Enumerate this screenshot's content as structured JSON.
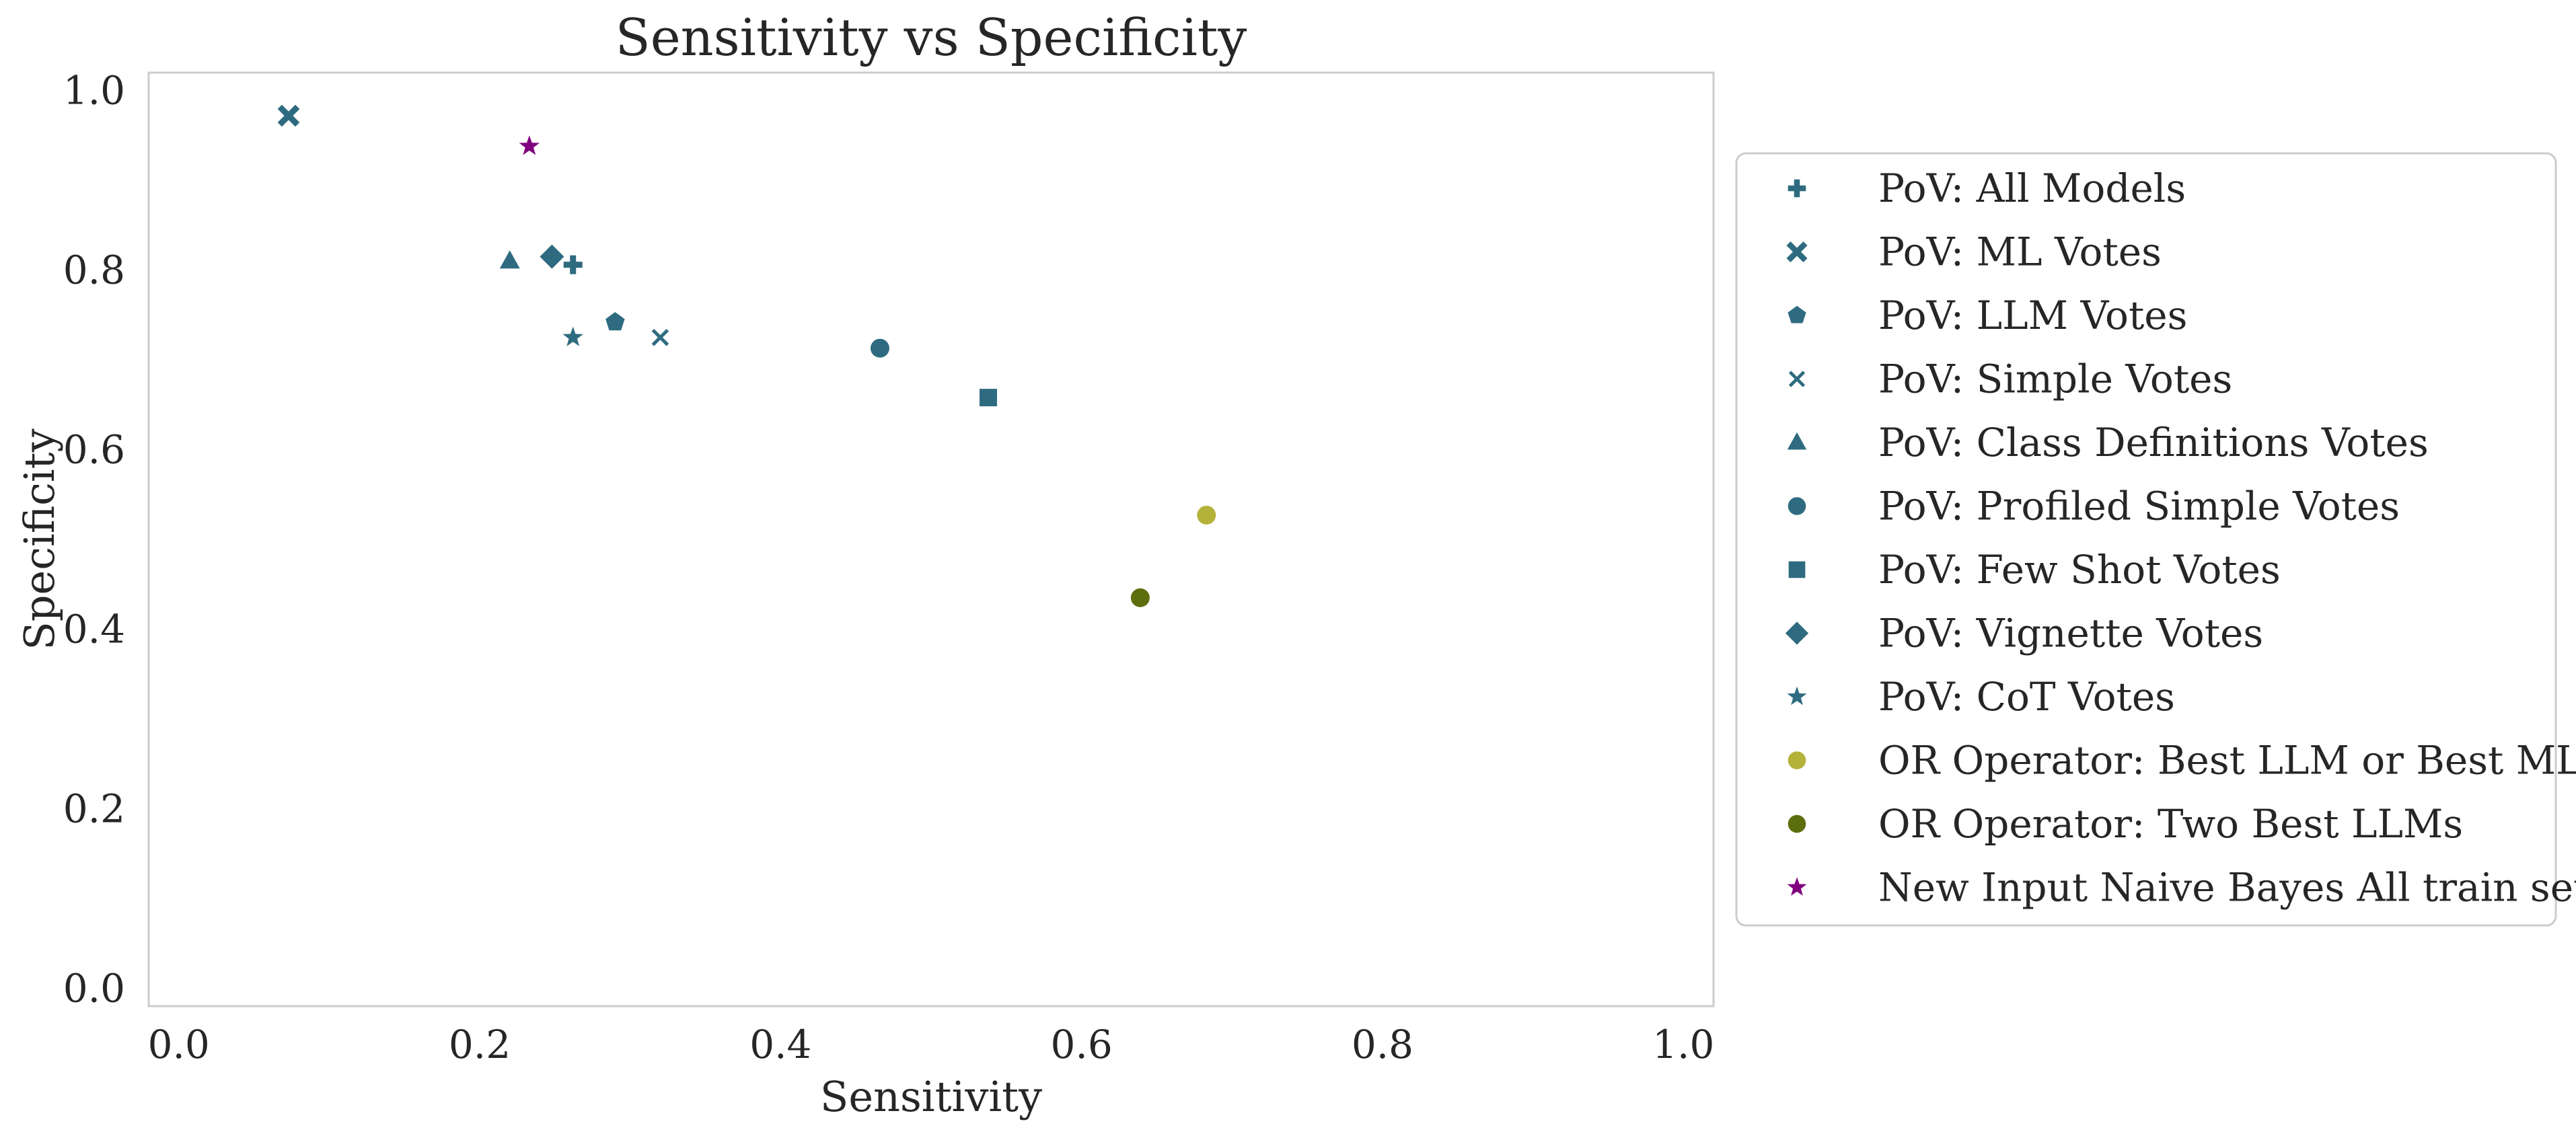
{
  "chart_data": {
    "type": "scatter",
    "title": "Sensitivity vs Specificity",
    "xlabel": "Sensitivity",
    "ylabel": "Specificity",
    "xlim": [
      -0.02,
      1.02
    ],
    "ylim": [
      -0.02,
      1.02
    ],
    "xticks": [
      0.0,
      0.2,
      0.4,
      0.6,
      0.8,
      1.0
    ],
    "yticks": [
      0.0,
      0.2,
      0.4,
      0.6,
      0.8,
      1.0
    ],
    "xtick_labels": [
      "0.0",
      "0.2",
      "0.4",
      "0.6",
      "0.8",
      "1.0"
    ],
    "ytick_labels": [
      "0.0",
      "0.2",
      "0.4",
      "0.6",
      "0.8",
      "1.0"
    ],
    "grid": false,
    "legend_position": "outside-right",
    "series": [
      {
        "name": "PoV: All Models",
        "marker": "plus-filled",
        "color": "#2f6b80",
        "x": 0.262,
        "y": 0.806
      },
      {
        "name": "PoV: ML Votes",
        "marker": "x-filled",
        "color": "#2f6b80",
        "x": 0.073,
        "y": 0.972
      },
      {
        "name": "PoV: LLM Votes",
        "marker": "pentagon",
        "color": "#2f6b80",
        "x": 0.29,
        "y": 0.742
      },
      {
        "name": "PoV: Simple Votes",
        "marker": "x",
        "color": "#2f6b80",
        "x": 0.32,
        "y": 0.725
      },
      {
        "name": "PoV: Class Definitions Votes",
        "marker": "triangle",
        "color": "#2f6b80",
        "x": 0.22,
        "y": 0.81
      },
      {
        "name": "PoV: Profiled Simple Votes",
        "marker": "circle",
        "color": "#2f6b80",
        "x": 0.466,
        "y": 0.713
      },
      {
        "name": "PoV: Few Shot Votes",
        "marker": "square",
        "color": "#2f6b80",
        "x": 0.538,
        "y": 0.658
      },
      {
        "name": "PoV: Vignette Votes",
        "marker": "diamond",
        "color": "#2f6b80",
        "x": 0.248,
        "y": 0.815
      },
      {
        "name": "PoV: CoT Votes",
        "marker": "star",
        "color": "#2f6b80",
        "x": 0.262,
        "y": 0.725
      },
      {
        "name": "OR Operator: Best LLM or Best ML",
        "marker": "circle",
        "color": "#b5b23a",
        "x": 0.683,
        "y": 0.527
      },
      {
        "name": "OR Operator: Two Best LLMs",
        "marker": "circle",
        "color": "#5c6e0e",
        "x": 0.639,
        "y": 0.435
      },
      {
        "name": "New Input Naive Bayes All train set",
        "marker": "star",
        "color": "#800080",
        "x": 0.233,
        "y": 0.938
      }
    ]
  }
}
